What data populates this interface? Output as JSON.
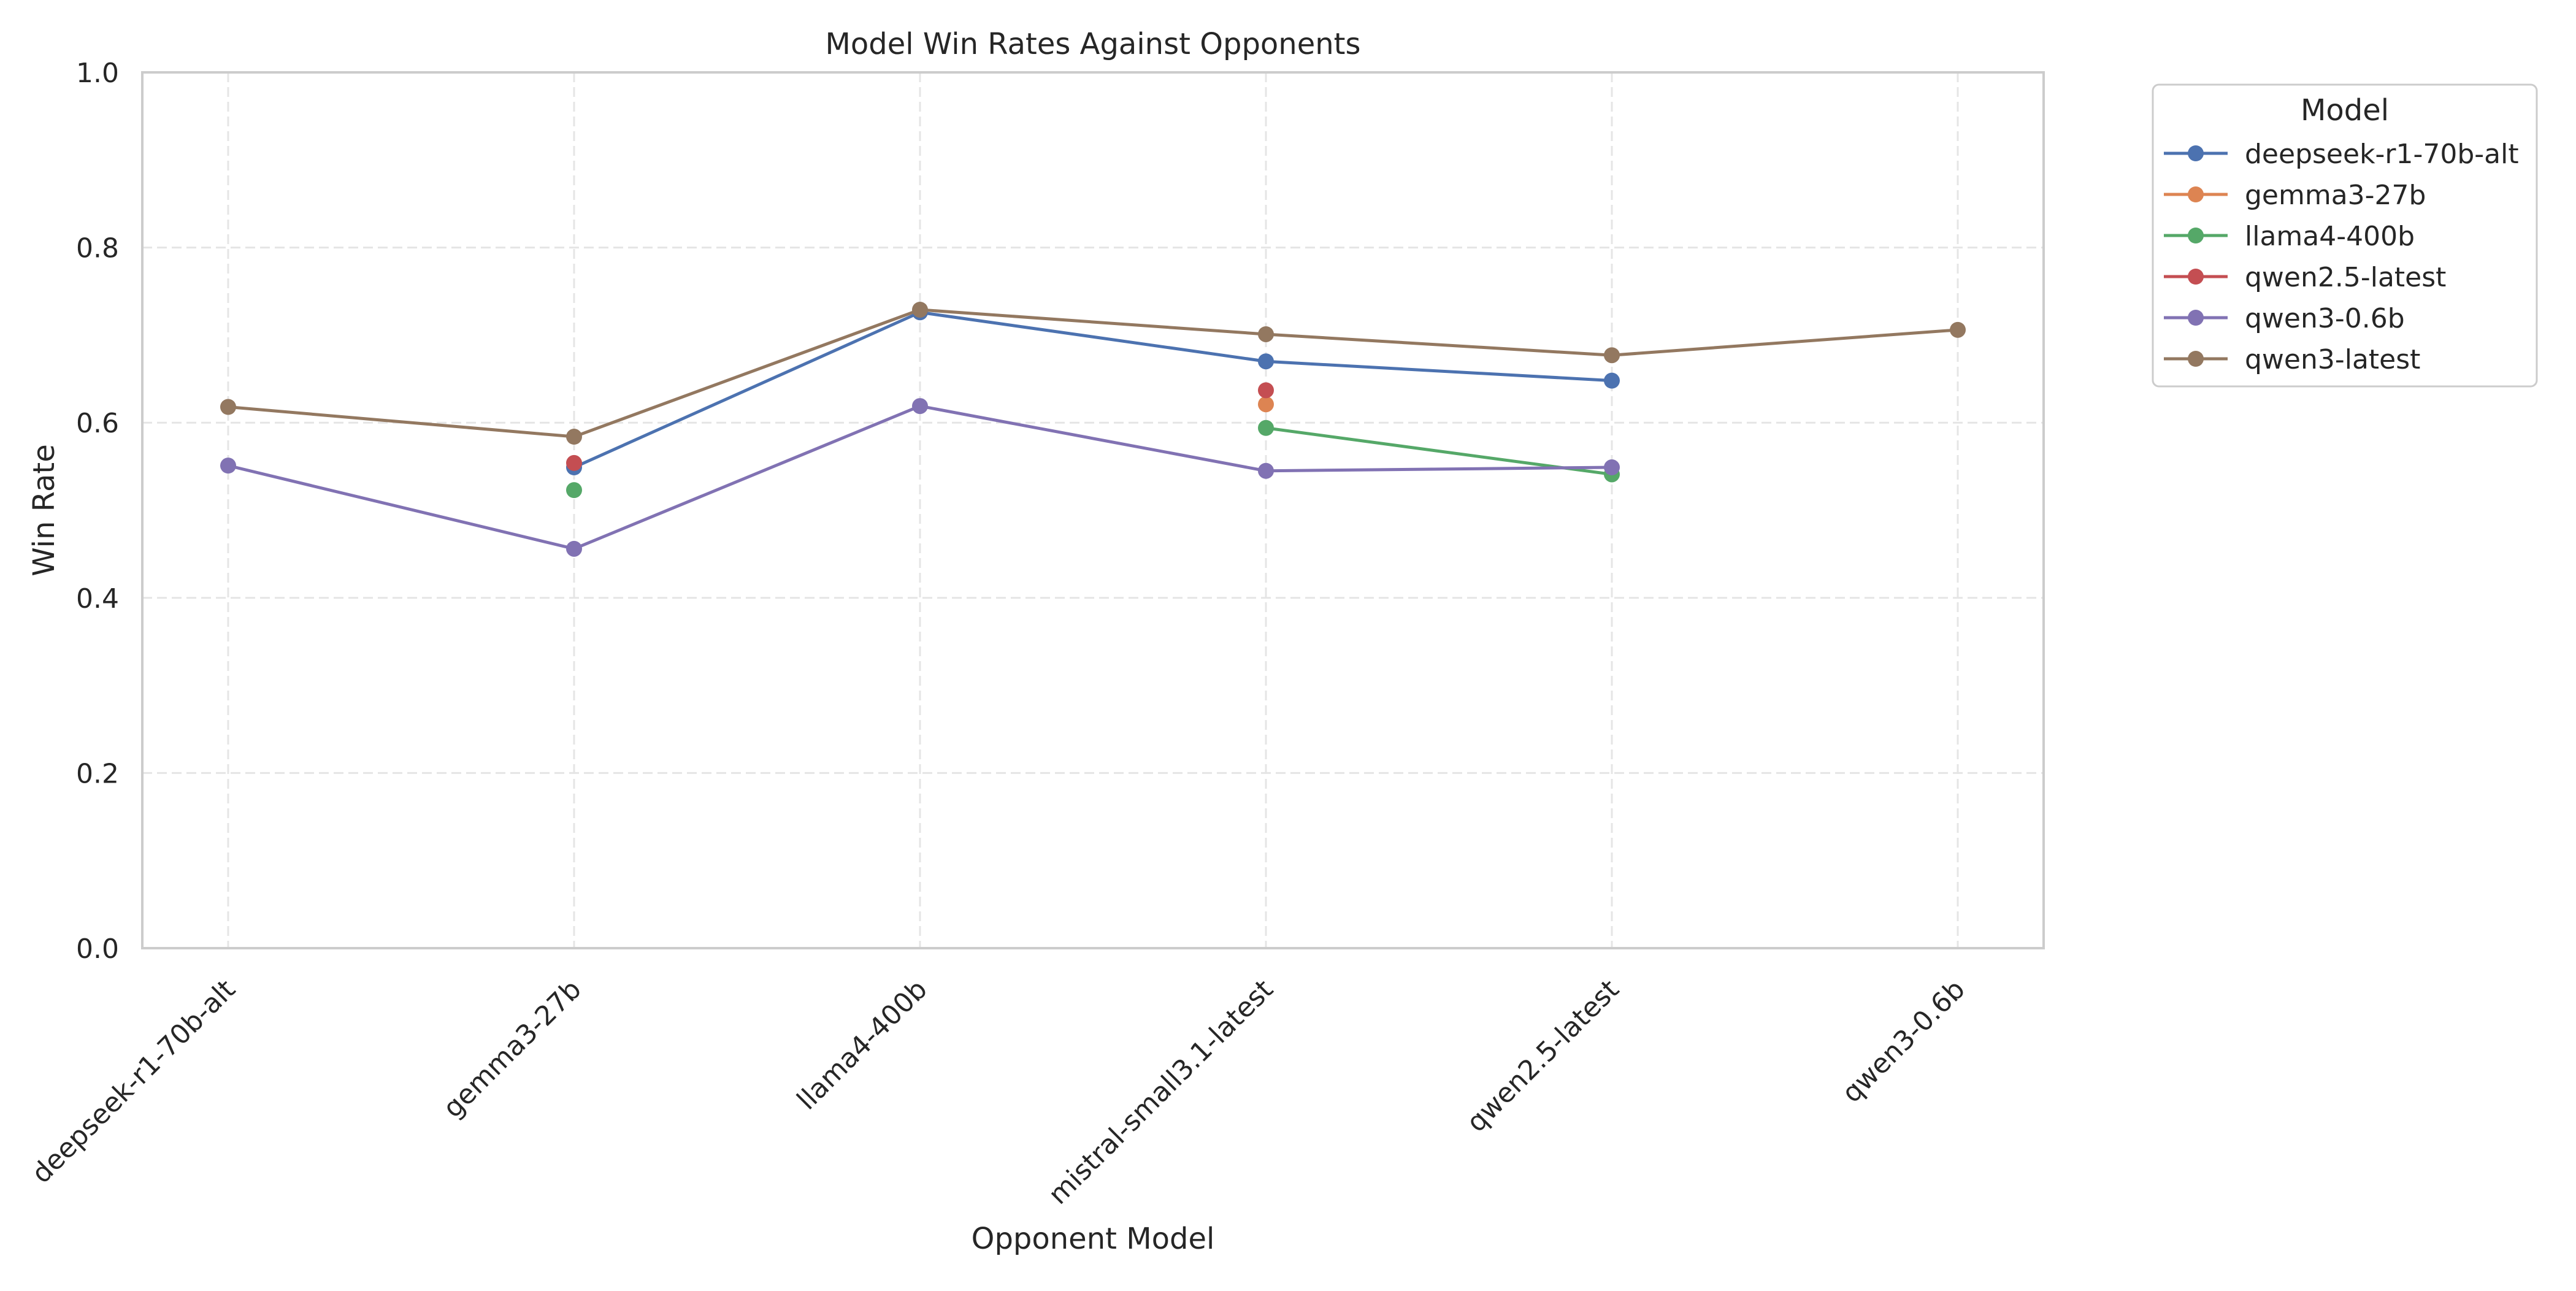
{
  "chart_data": {
    "type": "line",
    "title": "Model Win Rates Against Opponents",
    "xlabel": "Opponent Model",
    "ylabel": "Win Rate",
    "categories": [
      "deepseek-r1-70b-alt",
      "gemma3-27b",
      "llama4-400b",
      "mistral-small3.1-latest",
      "qwen2.5-latest",
      "qwen3-0.6b"
    ],
    "ylim": [
      0,
      1
    ],
    "yticks": [
      "0.0",
      "0.2",
      "0.4",
      "0.6",
      "0.8",
      "1.0"
    ],
    "grid": true,
    "legend": {
      "title": "Model",
      "placement": "outside-top-right"
    },
    "series": [
      {
        "name": "deepseek-r1-70b-alt",
        "color": "#4c72b0",
        "values": [
          null,
          0.549,
          0.726,
          0.67,
          0.648,
          null
        ]
      },
      {
        "name": "gemma3-27b",
        "color": "#dd8452",
        "values": [
          null,
          null,
          null,
          0.621,
          null,
          null
        ]
      },
      {
        "name": "llama4-400b",
        "color": "#55a868",
        "values": [
          null,
          0.523,
          null,
          0.594,
          0.541,
          null
        ]
      },
      {
        "name": "qwen2.5-latest",
        "color": "#c44e52",
        "values": [
          null,
          0.554,
          null,
          0.637,
          null,
          null
        ]
      },
      {
        "name": "qwen3-0.6b",
        "color": "#8172b3",
        "values": [
          0.551,
          0.456,
          0.619,
          0.545,
          0.549,
          null
        ]
      },
      {
        "name": "qwen3-latest",
        "color": "#937860",
        "values": [
          0.618,
          0.584,
          0.729,
          0.701,
          0.677,
          0.706
        ]
      }
    ]
  }
}
